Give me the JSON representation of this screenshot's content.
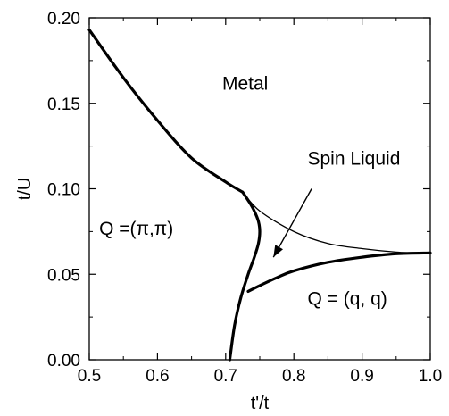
{
  "chart_data": {
    "type": "line",
    "title": "",
    "xlabel": "t'/t",
    "ylabel": "t/U",
    "xlim": [
      0.5,
      1.0
    ],
    "ylim": [
      0.0,
      0.2
    ],
    "xticks": [
      "0.5",
      "0.6",
      "0.7",
      "0.8",
      "0.9",
      "1.0"
    ],
    "yticks": [
      "0.00",
      "0.05",
      "0.10",
      "0.15",
      "0.20"
    ],
    "grid": false,
    "series": [
      {
        "style": "thick",
        "x": [
          0.5,
          0.55,
          0.6,
          0.65,
          0.7,
          0.725
        ],
        "y": [
          0.193,
          0.165,
          0.14,
          0.118,
          0.104,
          0.098
        ]
      },
      {
        "style": "thick",
        "x": [
          0.725,
          0.735,
          0.742,
          0.748,
          0.75,
          0.748,
          0.742,
          0.733,
          0.722,
          0.713,
          0.706
        ],
        "y": [
          0.098,
          0.092,
          0.087,
          0.081,
          0.075,
          0.068,
          0.06,
          0.05,
          0.036,
          0.02,
          0.0
        ]
      },
      {
        "style": "thick",
        "x": [
          0.733,
          0.748,
          0.775,
          0.8,
          0.85,
          0.9,
          0.95,
          1.0
        ],
        "y": [
          0.04,
          0.043,
          0.048,
          0.052,
          0.057,
          0.06,
          0.062,
          0.0625
        ]
      },
      {
        "style": "thin",
        "x": [
          0.725,
          0.75,
          0.8,
          0.85,
          0.9,
          0.95,
          1.0
        ],
        "y": [
          0.098,
          0.087,
          0.075,
          0.068,
          0.065,
          0.063,
          0.062
        ]
      }
    ],
    "annotations": [
      {
        "text": "Metal",
        "x": 0.695,
        "y": 0.158
      },
      {
        "text": "Q =(π,π)",
        "x": 0.5145,
        "y": 0.073
      },
      {
        "text": "Spin Liquid",
        "x": 0.82,
        "y": 0.114
      },
      {
        "text": "Q = (q, q)",
        "x": 0.82,
        "y": 0.032
      }
    ],
    "arrow": {
      "from": [
        0.826,
        0.1
      ],
      "to": [
        0.77,
        0.06
      ]
    }
  }
}
